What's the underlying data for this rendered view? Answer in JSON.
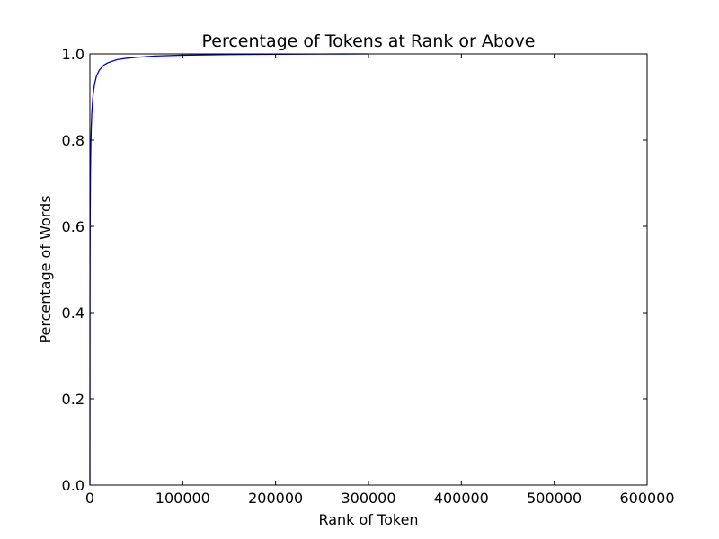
{
  "chart_data": {
    "type": "line",
    "title": "Percentage of Tokens at Rank or Above",
    "xlabel": "Rank of Token",
    "ylabel": "Percentage of Words",
    "xlim": [
      0,
      600000
    ],
    "ylim": [
      0.0,
      1.0
    ],
    "x_ticks": [
      "0",
      "100000",
      "200000",
      "300000",
      "400000",
      "500000",
      "600000"
    ],
    "y_ticks": [
      "0.0",
      "0.2",
      "0.4",
      "0.6",
      "0.8",
      "1.0"
    ],
    "grid": false,
    "legend": "none",
    "series": [
      {
        "color": "#0000cc",
        "x": [
          0,
          100,
          300,
          600,
          1000,
          1500,
          2000,
          3000,
          4000,
          5000,
          7000,
          10000,
          15000,
          20000,
          30000,
          40000,
          50000,
          70000,
          100000,
          150000,
          200000,
          250000,
          300000
        ],
        "y": [
          0.0,
          0.45,
          0.62,
          0.72,
          0.79,
          0.83,
          0.86,
          0.895,
          0.915,
          0.93,
          0.948,
          0.962,
          0.974,
          0.98,
          0.987,
          0.99,
          0.992,
          0.995,
          0.997,
          0.9985,
          0.9993,
          0.9997,
          1.0
        ]
      }
    ]
  }
}
